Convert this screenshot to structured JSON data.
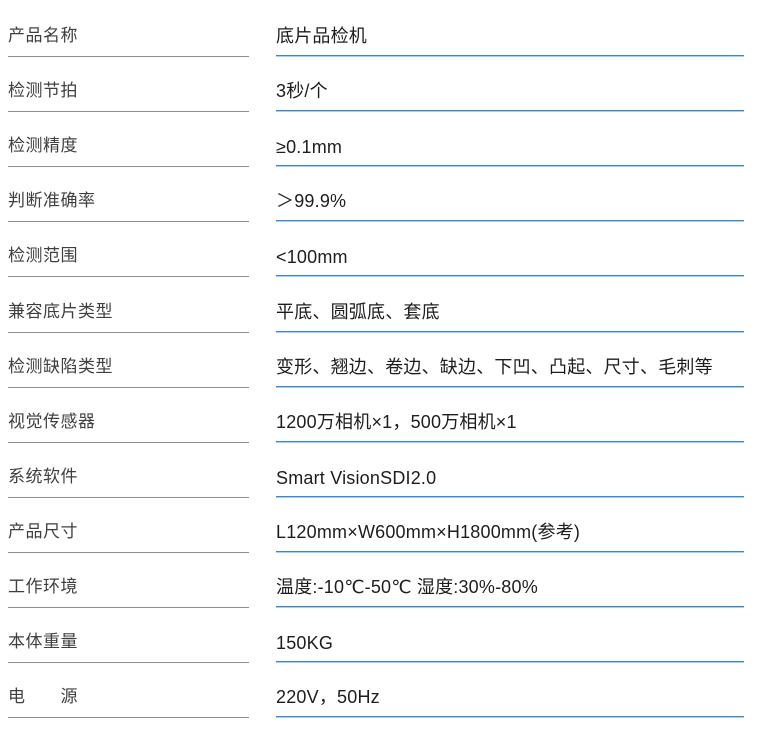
{
  "colors": {
    "accent_blue": "#3f87c9",
    "accent_blue_light": "#a9cfee",
    "divider_gray": "#8f8f8f",
    "label_text": "#3f3f3f",
    "value_text": "#1d1d1d"
  },
  "table": {
    "rows": [
      {
        "label": "产品名称",
        "value": "底片品检机"
      },
      {
        "label": "检测节拍",
        "value": "3秒/个"
      },
      {
        "label": "检测精度",
        "value": "≥0.1mm"
      },
      {
        "label": "判断准确率",
        "value": "＞99.9%"
      },
      {
        "label": "检测范围",
        "value": "<100mm"
      },
      {
        "label": "兼容底片类型",
        "value": "平底、圆弧底、套底"
      },
      {
        "label": "检测缺陷类型",
        "value": "变形、翘边、卷边、缺边、下凹、凸起、尺寸、毛刺等"
      },
      {
        "label": "视觉传感器",
        "value": "1200万相机×1，500万相机×1"
      },
      {
        "label": "系统软件",
        "value": "Smart VisionSDI2.0"
      },
      {
        "label": "产品尺寸",
        "value": "L120mm×W600mm×H1800mm(参考)"
      },
      {
        "label": "工作环境",
        "value": "温度:-10℃-50℃ 湿度:30%-80%"
      },
      {
        "label": "本体重量",
        "value": "150KG"
      },
      {
        "label": "电　　源",
        "value": "220V，50Hz"
      }
    ]
  }
}
